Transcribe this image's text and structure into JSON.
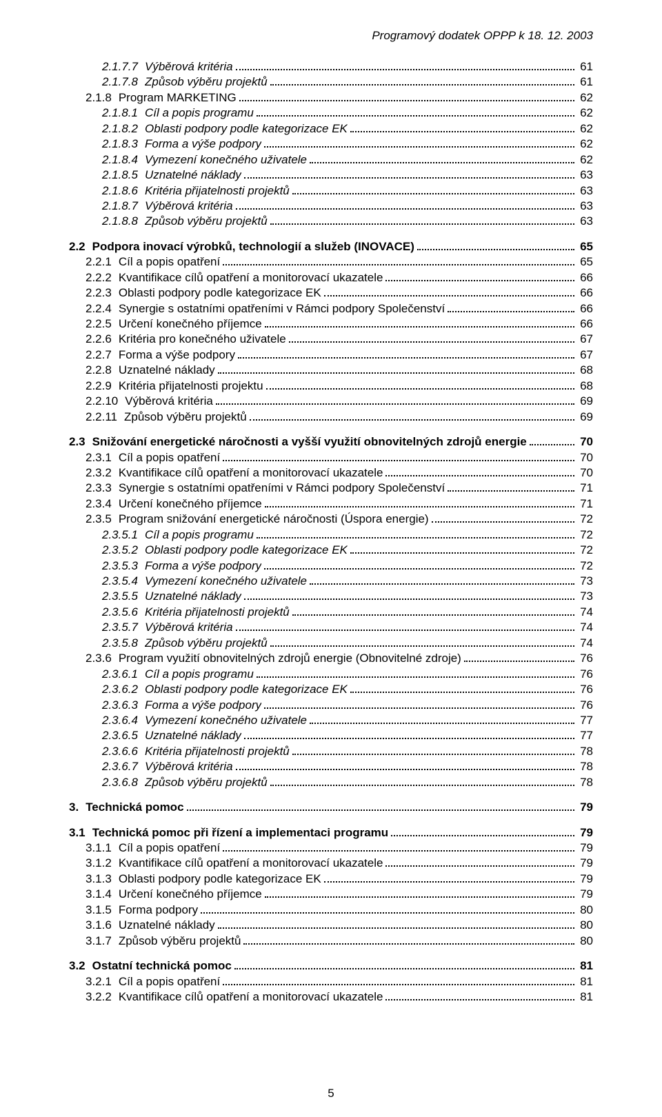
{
  "header": "Programový dodatek OPPP k 18. 12. 2003",
  "pageNumber": "5",
  "toc": [
    {
      "level": 4,
      "num": "2.1.7.7",
      "title": "Výběrová kritéria",
      "page": "61",
      "italic": true
    },
    {
      "level": 4,
      "num": "2.1.7.8",
      "title": "Způsob výběru projektů",
      "page": "61",
      "italic": true
    },
    {
      "level": 3,
      "num": "2.1.8",
      "title": "Program MARKETING",
      "page": "62"
    },
    {
      "level": 4,
      "num": "2.1.8.1",
      "title": "Cíl a popis programu",
      "page": "62",
      "italic": true
    },
    {
      "level": 4,
      "num": "2.1.8.2",
      "title": "Oblasti podpory podle kategorizace EK",
      "page": "62",
      "italic": true
    },
    {
      "level": 4,
      "num": "2.1.8.3",
      "title": "Forma a výše podpory",
      "page": "62",
      "italic": true
    },
    {
      "level": 4,
      "num": "2.1.8.4",
      "title": "Vymezení konečného uživatele",
      "page": "62",
      "italic": true
    },
    {
      "level": 4,
      "num": "2.1.8.5",
      "title": "Uznatelné náklady",
      "page": "63",
      "italic": true
    },
    {
      "level": 4,
      "num": "2.1.8.6",
      "title": "Kritéria přijatelnosti projektů",
      "page": "63",
      "italic": true
    },
    {
      "level": 4,
      "num": "2.1.8.7",
      "title": "Výběrová kritéria",
      "page": "63",
      "italic": true
    },
    {
      "level": 4,
      "num": "2.1.8.8",
      "title": "Způsob výběru projektů",
      "page": "63",
      "italic": true
    },
    {
      "level": 2,
      "num": "2.2",
      "title": "Podpora inovací výrobků, technologií a služeb (INOVACE)",
      "page": "65",
      "bold": true,
      "gapBefore": true
    },
    {
      "level": 3,
      "num": "2.2.1",
      "title": "Cíl a popis opatření",
      "page": "65"
    },
    {
      "level": 3,
      "num": "2.2.2",
      "title": "Kvantifikace cílů opatření a monitorovací ukazatele",
      "page": "66"
    },
    {
      "level": 3,
      "num": "2.2.3",
      "title": "Oblasti podpory podle kategorizace EK",
      "page": "66"
    },
    {
      "level": 3,
      "num": "2.2.4",
      "title": "Synergie s ostatními opatřeními v Rámci podpory Společenství",
      "page": "66"
    },
    {
      "level": 3,
      "num": "2.2.5",
      "title": "Určení konečného příjemce",
      "page": "66"
    },
    {
      "level": 3,
      "num": "2.2.6",
      "title": "Kritéria pro konečného uživatele",
      "page": "67"
    },
    {
      "level": 3,
      "num": "2.2.7",
      "title": "Forma a výše podpory",
      "page": "67"
    },
    {
      "level": 3,
      "num": "2.2.8",
      "title": "Uznatelné náklady",
      "page": "68"
    },
    {
      "level": 3,
      "num": "2.2.9",
      "title": "Kritéria přijatelnosti projektu",
      "page": "68"
    },
    {
      "level": 3,
      "num": "2.2.10",
      "title": "Výběrová kritéria",
      "page": "69"
    },
    {
      "level": 3,
      "num": "2.2.11",
      "title": "Způsob výběru projektů",
      "page": "69"
    },
    {
      "level": 2,
      "num": "2.3",
      "title": "Snižování energetické náročnosti a vyšší využití obnovitelných zdrojů energie",
      "page": "70",
      "bold": true,
      "gapBefore": true
    },
    {
      "level": 3,
      "num": "2.3.1",
      "title": "Cíl a popis opatření",
      "page": "70"
    },
    {
      "level": 3,
      "num": "2.3.2",
      "title": "Kvantifikace cílů opatření a monitorovací ukazatele",
      "page": "70"
    },
    {
      "level": 3,
      "num": "2.3.3",
      "title": "Synergie s ostatními opatřeními v Rámci podpory Společenství",
      "page": "71"
    },
    {
      "level": 3,
      "num": "2.3.4",
      "title": "Určení konečného příjemce",
      "page": "71"
    },
    {
      "level": 3,
      "num": "2.3.5",
      "title": "Program snižování energetické náročnosti (Úspora energie)",
      "page": "72"
    },
    {
      "level": 4,
      "num": "2.3.5.1",
      "title": "Cíl a popis programu",
      "page": "72",
      "italic": true
    },
    {
      "level": 4,
      "num": "2.3.5.2",
      "title": "Oblasti podpory podle kategorizace EK",
      "page": "72",
      "italic": true
    },
    {
      "level": 4,
      "num": "2.3.5.3",
      "title": "Forma a výše podpory",
      "page": "72",
      "italic": true
    },
    {
      "level": 4,
      "num": "2.3.5.4",
      "title": "Vymezení konečného uživatele",
      "page": "73",
      "italic": true
    },
    {
      "level": 4,
      "num": "2.3.5.5",
      "title": "Uznatelné náklady",
      "page": "73",
      "italic": true
    },
    {
      "level": 4,
      "num": "2.3.5.6",
      "title": "Kritéria přijatelnosti projektů",
      "page": "74",
      "italic": true
    },
    {
      "level": 4,
      "num": "2.3.5.7",
      "title": "Výběrová kritéria",
      "page": "74",
      "italic": true
    },
    {
      "level": 4,
      "num": "2.3.5.8",
      "title": "Způsob výběru projektů",
      "page": "74",
      "italic": true
    },
    {
      "level": 3,
      "num": "2.3.6",
      "title": "Program využití obnovitelných zdrojů energie (Obnovitelné zdroje)",
      "page": "76"
    },
    {
      "level": 4,
      "num": "2.3.6.1",
      "title": "Cíl a popis programu",
      "page": "76",
      "italic": true
    },
    {
      "level": 4,
      "num": "2.3.6.2",
      "title": "Oblasti podpory podle kategorizace EK",
      "page": "76",
      "italic": true
    },
    {
      "level": 4,
      "num": "2.3.6.3",
      "title": "Forma a výše podpory",
      "page": "76",
      "italic": true
    },
    {
      "level": 4,
      "num": "2.3.6.4",
      "title": "Vymezení konečného uživatele",
      "page": "77",
      "italic": true
    },
    {
      "level": 4,
      "num": "2.3.6.5",
      "title": "Uznatelné náklady",
      "page": "77",
      "italic": true
    },
    {
      "level": 4,
      "num": "2.3.6.6",
      "title": "Kritéria přijatelnosti projektů",
      "page": "78",
      "italic": true
    },
    {
      "level": 4,
      "num": "2.3.6.7",
      "title": "Výběrová kritéria",
      "page": "78",
      "italic": true
    },
    {
      "level": 4,
      "num": "2.3.6.8",
      "title": "Způsob výběru projektů",
      "page": "78",
      "italic": true
    },
    {
      "level": 1,
      "num": "3.",
      "title": "Technická pomoc",
      "page": "79",
      "bold": true,
      "gapBefore": true
    },
    {
      "level": 2,
      "num": "3.1",
      "title": "Technická pomoc při řízení a implementaci programu",
      "page": "79",
      "bold": true,
      "gapBefore": true
    },
    {
      "level": 3,
      "num": "3.1.1",
      "title": "Cíl a popis opatření",
      "page": "79"
    },
    {
      "level": 3,
      "num": "3.1.2",
      "title": "Kvantifikace cílů opatření a monitorovací ukazatele",
      "page": "79"
    },
    {
      "level": 3,
      "num": "3.1.3",
      "title": "Oblasti podpory podle kategorizace EK",
      "page": "79"
    },
    {
      "level": 3,
      "num": "3.1.4",
      "title": "Určení konečného příjemce",
      "page": "79"
    },
    {
      "level": 3,
      "num": "3.1.5",
      "title": "Forma podpory",
      "page": "80"
    },
    {
      "level": 3,
      "num": "3.1.6",
      "title": "Uznatelné náklady",
      "page": "80"
    },
    {
      "level": 3,
      "num": "3.1.7",
      "title": "Způsob výběru projektů",
      "page": "80"
    },
    {
      "level": 2,
      "num": "3.2",
      "title": "Ostatní technická pomoc",
      "page": "81",
      "bold": true,
      "gapBefore": true
    },
    {
      "level": 3,
      "num": "3.2.1",
      "title": "Cíl a popis opatření",
      "page": "81"
    },
    {
      "level": 3,
      "num": "3.2.2",
      "title": "Kvantifikace cílů opatření a monitorovací ukazatele",
      "page": "81"
    }
  ]
}
